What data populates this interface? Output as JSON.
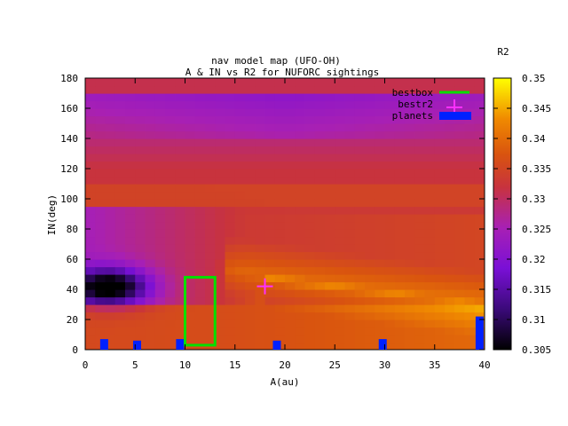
{
  "chart_data": {
    "type": "heatmap",
    "title_line1": "nav model map (UFO-OH)",
    "title_line2": "A & IN vs R2 for NUFORC sightings",
    "xlabel": "A(au)",
    "ylabel": "IN(deg)",
    "xlim": [
      0,
      40
    ],
    "ylim": [
      0,
      180
    ],
    "x_ticks": [
      0,
      5,
      10,
      15,
      20,
      25,
      30,
      35,
      40
    ],
    "y_ticks": [
      0,
      20,
      40,
      60,
      80,
      100,
      120,
      140,
      160,
      180
    ],
    "colorbar": {
      "label": "R2",
      "min": 0.305,
      "max": 0.35,
      "ticks": [
        "0.305",
        "0.31",
        "0.315",
        "0.32",
        "0.325",
        "0.33",
        "0.335",
        "0.34",
        "0.345",
        "0.35"
      ]
    },
    "legend": {
      "placement": "top-right",
      "entries": [
        {
          "name": "bestbox",
          "color": "#00e000"
        },
        {
          "name": "bestr2",
          "color": "#ff30ff"
        },
        {
          "name": "planets",
          "color": "#0020ff"
        }
      ]
    },
    "bestbox": {
      "x0": 10,
      "x1": 13,
      "y0": 3,
      "y1": 48
    },
    "bestr2": {
      "x": 18,
      "y": 42
    },
    "planets": [
      {
        "x": 1.9,
        "height": 7,
        "width": 0.8
      },
      {
        "x": 5.2,
        "height": 6,
        "width": 0.8
      },
      {
        "x": 9.5,
        "height": 7,
        "width": 0.8
      },
      {
        "x": 19.2,
        "height": 6,
        "width": 0.8
      },
      {
        "x": 29.8,
        "height": 7,
        "width": 0.8
      },
      {
        "x": 39.5,
        "height": 22,
        "width": 0.8
      }
    ],
    "grid": false
  }
}
